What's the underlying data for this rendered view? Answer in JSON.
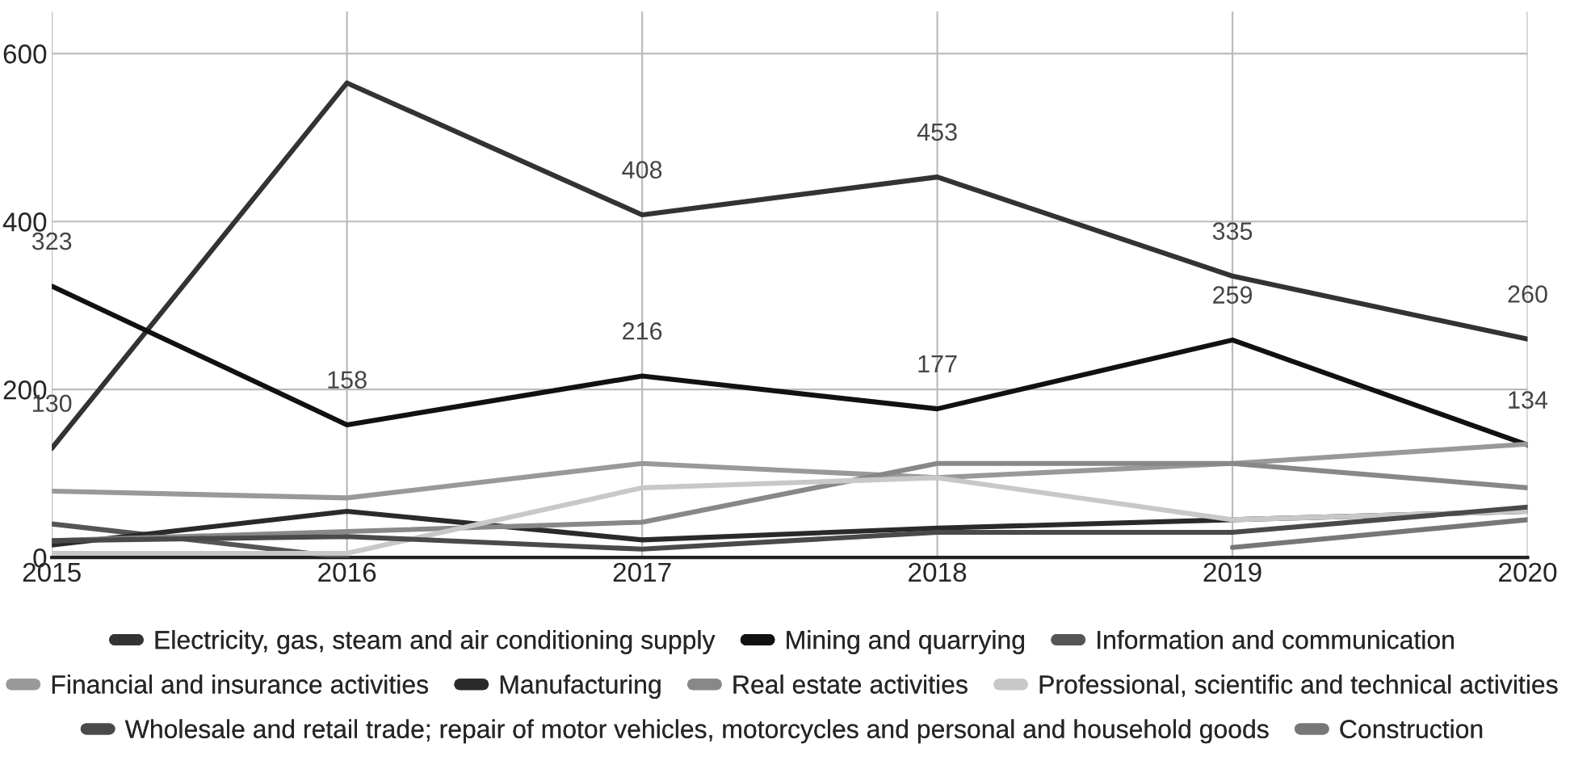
{
  "chart_data": {
    "type": "line",
    "x": [
      2015,
      2016,
      2017,
      2018,
      2019,
      2020
    ],
    "xlim": [
      2015,
      2020
    ],
    "xticks": [
      2015,
      2016,
      2017,
      2018,
      2019,
      2020
    ],
    "ylim": [
      0,
      650
    ],
    "yticks": [
      0,
      200,
      400,
      600
    ],
    "grid": true,
    "legend": "bottom",
    "marker": "none",
    "line_style": "solid",
    "series": [
      {
        "name": "Electricity, gas, steam and air conditioning supply",
        "color": "#333333",
        "values": [
          130,
          565,
          408,
          453,
          335,
          260
        ],
        "value_labels": [
          "130",
          null,
          "408",
          "453",
          "335",
          "260"
        ]
      },
      {
        "name": "Mining and quarrying",
        "color": "#111111",
        "values": [
          323,
          158,
          216,
          177,
          259,
          134
        ],
        "value_labels": [
          "323",
          "158",
          "216",
          "177",
          "259",
          "134"
        ]
      },
      {
        "name": "Information and communication",
        "color": "#555555",
        "values": [
          40,
          0,
          null,
          null,
          null,
          null
        ]
      },
      {
        "name": "Financial and insurance activities",
        "color": "#999999",
        "values": [
          79,
          71,
          112,
          95,
          112,
          135
        ]
      },
      {
        "name": "Manufacturing",
        "color": "#2a2a2a",
        "values": [
          15,
          55,
          21,
          35,
          45,
          55
        ]
      },
      {
        "name": "Real estate activities",
        "color": "#888888",
        "values": [
          20,
          31,
          42,
          112,
          112,
          83
        ]
      },
      {
        "name": "Professional, scientific and technical activities",
        "color": "#c8c8c8",
        "values": [
          5,
          5,
          83,
          95,
          45,
          55
        ]
      },
      {
        "name": "Wholesale and retail trade; repair of motor vehicles, motorcycles and personal and household goods",
        "color": "#4a4a4a",
        "values": [
          20,
          25,
          10,
          30,
          30,
          60
        ]
      },
      {
        "name": "Construction",
        "color": "#777777",
        "values": [
          null,
          null,
          null,
          null,
          12,
          45
        ]
      }
    ]
  }
}
